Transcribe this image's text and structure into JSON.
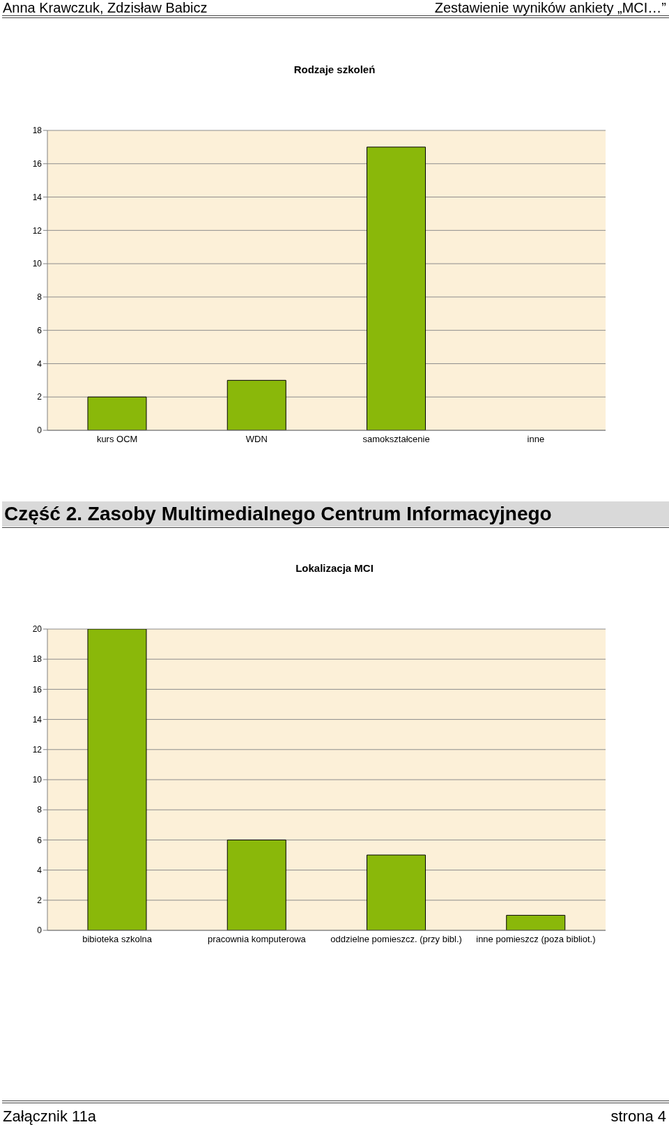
{
  "chart_data": [
    {
      "type": "bar",
      "title": "Rodzaje szkoleń",
      "categories": [
        "kurs OCM",
        "WDN",
        "samokształcenie",
        "inne"
      ],
      "values": [
        2,
        3,
        17,
        0
      ],
      "color": "#8ab80a",
      "ylim": [
        0,
        18
      ],
      "yticks": [
        0,
        2,
        4,
        6,
        8,
        10,
        12,
        14,
        16,
        18
      ],
      "grid": "y",
      "annotations": [
        "Anna Krawczuk, Zdzisław Babicz",
        "Zestawienie wyników ankiety „MCI…”"
      ]
    },
    {
      "type": "bar",
      "title": "Lokalizacja MCI",
      "categories": [
        "bibioteka szkolna",
        "pracownia komputerowa",
        "oddzielne pomieszcz. (przy bibl.)",
        "inne pomieszcz (poza bibliot.)"
      ],
      "values": [
        20,
        6,
        5,
        1
      ],
      "color": "#8ab80a",
      "ylim": [
        0,
        20
      ],
      "yticks": [
        0,
        2,
        4,
        6,
        8,
        10,
        12,
        14,
        16,
        18,
        20
      ],
      "grid": "y",
      "annotations": [
        "Część 2. Zasoby Multimedialnego Centrum Informacyjnego",
        "Załącznik 11a",
        "strona 4"
      ]
    }
  ]
}
